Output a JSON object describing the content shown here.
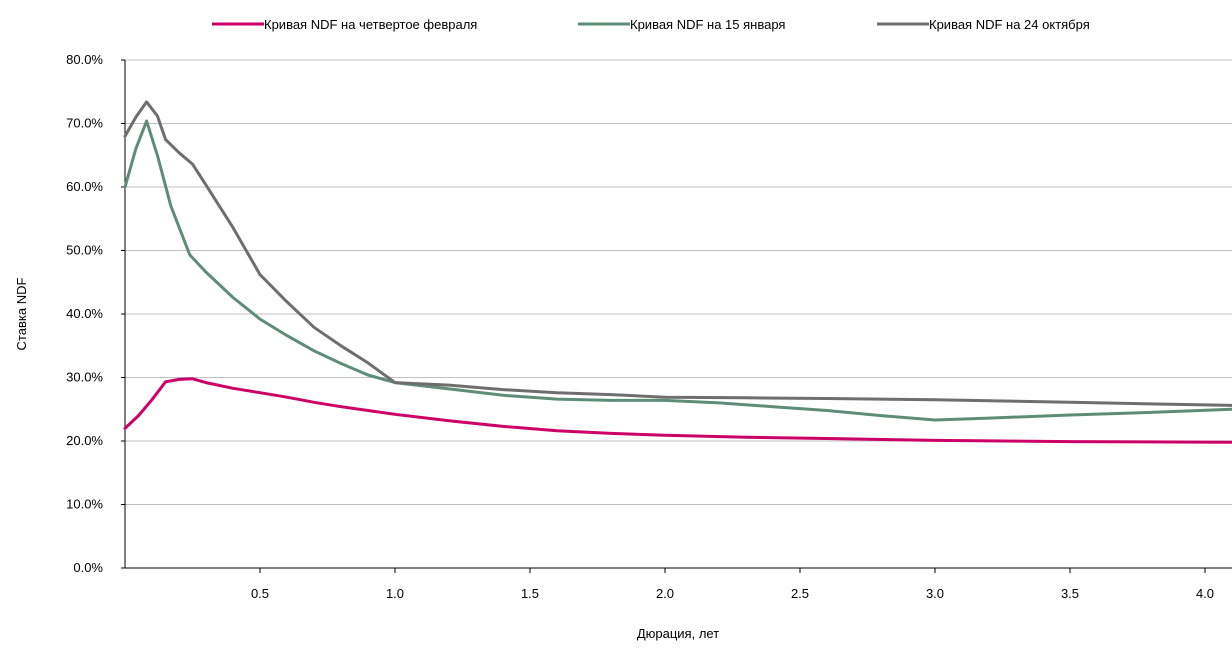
{
  "chart_data": {
    "type": "line",
    "title": "",
    "xlabel": "Дюрация, лет",
    "ylabel": "Ставка NDF",
    "xlim": [
      0,
      4.1
    ],
    "ylim": [
      0,
      80
    ],
    "x_ticks": [
      0.5,
      1.0,
      1.5,
      2.0,
      2.5,
      3.0,
      3.5,
      4.0
    ],
    "x_tick_labels": [
      "0.5",
      "1.0",
      "1.5",
      "2.0",
      "2.5",
      "3.0",
      "3.5",
      "4.0"
    ],
    "y_ticks": [
      0,
      10,
      20,
      30,
      40,
      50,
      60,
      70,
      80
    ],
    "y_tick_labels": [
      "0.0%",
      "10.0%",
      "20.0%",
      "30.0%",
      "40.0%",
      "50.0%",
      "60.0%",
      "70.0%",
      "80.0%"
    ],
    "grid": "horizontal",
    "legend_position": "top",
    "series": [
      {
        "name": "Кривая NDF на четвертое февраля",
        "color": "#cc0066",
        "points": [
          [
            0,
            22
          ],
          [
            0.05,
            24
          ],
          [
            0.1,
            26.5
          ],
          [
            0.15,
            29.3
          ],
          [
            0.2,
            29.7
          ],
          [
            0.25,
            29.8
          ],
          [
            0.3,
            29.2
          ],
          [
            0.4,
            28.3
          ],
          [
            0.5,
            27.6
          ],
          [
            0.6,
            26.9
          ],
          [
            0.7,
            26.1
          ],
          [
            0.8,
            25.4
          ],
          [
            0.9,
            24.8
          ],
          [
            1.0,
            24.2
          ],
          [
            1.2,
            23.2
          ],
          [
            1.4,
            22.3
          ],
          [
            1.6,
            21.6
          ],
          [
            1.8,
            21.2
          ],
          [
            2.0,
            20.9
          ],
          [
            2.3,
            20.6
          ],
          [
            2.6,
            20.4
          ],
          [
            3.0,
            20.1
          ],
          [
            3.5,
            19.9
          ],
          [
            4.1,
            19.8
          ]
        ]
      },
      {
        "name": "Кривая NDF на 15 января",
        "color": "#5f8c77",
        "points": [
          [
            0,
            60
          ],
          [
            0.04,
            66
          ],
          [
            0.08,
            70.4
          ],
          [
            0.12,
            65
          ],
          [
            0.17,
            57
          ],
          [
            0.24,
            49.3
          ],
          [
            0.3,
            46.6
          ],
          [
            0.4,
            42.6
          ],
          [
            0.5,
            39.2
          ],
          [
            0.6,
            36.6
          ],
          [
            0.7,
            34.2
          ],
          [
            0.8,
            32.2
          ],
          [
            0.9,
            30.4
          ],
          [
            1.0,
            29.2
          ],
          [
            1.2,
            28.2
          ],
          [
            1.4,
            27.2
          ],
          [
            1.6,
            26.6
          ],
          [
            1.8,
            26.4
          ],
          [
            2.0,
            26.4
          ],
          [
            2.2,
            26.0
          ],
          [
            2.4,
            25.4
          ],
          [
            2.6,
            24.8
          ],
          [
            2.8,
            24.0
          ],
          [
            3.0,
            23.3
          ],
          [
            3.2,
            23.6
          ],
          [
            3.5,
            24.1
          ],
          [
            3.8,
            24.5
          ],
          [
            4.1,
            25.0
          ]
        ]
      },
      {
        "name": "Кривая NDF на 24 октября",
        "color": "#6e6e6e",
        "points": [
          [
            0,
            68
          ],
          [
            0.04,
            71
          ],
          [
            0.08,
            73.4
          ],
          [
            0.12,
            71.2
          ],
          [
            0.15,
            67.5
          ],
          [
            0.2,
            65.4
          ],
          [
            0.25,
            63.6
          ],
          [
            0.3,
            60.3
          ],
          [
            0.4,
            53.6
          ],
          [
            0.5,
            46.2
          ],
          [
            0.6,
            41.9
          ],
          [
            0.7,
            37.9
          ],
          [
            0.8,
            35.0
          ],
          [
            0.9,
            32.3
          ],
          [
            1.0,
            29.2
          ],
          [
            1.2,
            28.8
          ],
          [
            1.4,
            28.1
          ],
          [
            1.6,
            27.6
          ],
          [
            1.8,
            27.3
          ],
          [
            2.0,
            26.9
          ],
          [
            2.3,
            26.8
          ],
          [
            2.6,
            26.7
          ],
          [
            3.0,
            26.5
          ],
          [
            3.5,
            26.1
          ],
          [
            4.1,
            25.6
          ]
        ]
      }
    ]
  }
}
